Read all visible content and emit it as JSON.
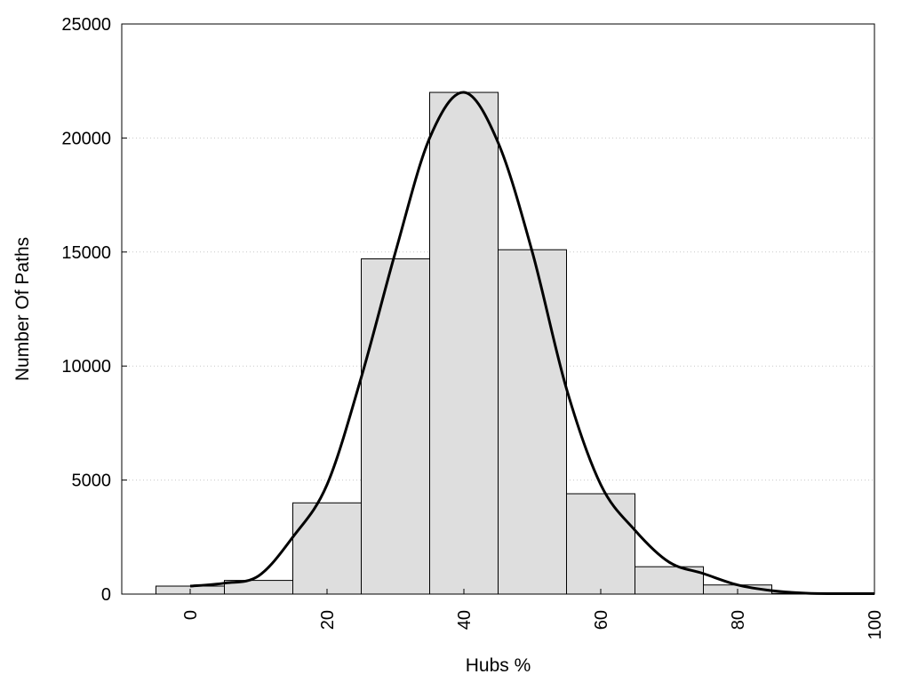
{
  "chart_data": {
    "type": "bar",
    "title": "",
    "xlabel": "Hubs %",
    "ylabel": "Number Of Paths",
    "xlim": [
      -10,
      100
    ],
    "ylim": [
      0,
      25000
    ],
    "x_ticks": [
      "0",
      "20",
      "40",
      "60",
      "80",
      "100"
    ],
    "y_ticks": [
      "0",
      "5000",
      "10000",
      "15000",
      "20000",
      "25000"
    ],
    "grid": "horizontal dotted",
    "bin_width": 10,
    "bars": [
      {
        "center": 0,
        "value": 350
      },
      {
        "center": 10,
        "value": 600
      },
      {
        "center": 20,
        "value": 4000
      },
      {
        "center": 30,
        "value": 14700
      },
      {
        "center": 40,
        "value": 22000
      },
      {
        "center": 50,
        "value": 15100
      },
      {
        "center": 60,
        "value": 4400
      },
      {
        "center": 70,
        "value": 1200
      },
      {
        "center": 80,
        "value": 400
      },
      {
        "center": 90,
        "value": 30
      }
    ],
    "density_curve": {
      "x": [
        0,
        5,
        10,
        15,
        20,
        25,
        30,
        35,
        40,
        45,
        50,
        55,
        60,
        65,
        70,
        75,
        80,
        85,
        90,
        95,
        100
      ],
      "y": [
        350,
        480,
        800,
        2500,
        4800,
        9500,
        15000,
        20000,
        22000,
        19800,
        15000,
        9000,
        4800,
        2800,
        1400,
        900,
        400,
        150,
        40,
        20,
        20
      ]
    }
  }
}
